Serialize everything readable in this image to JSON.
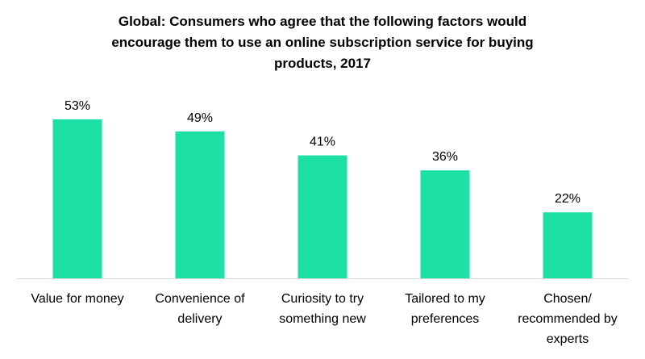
{
  "chart_data": {
    "type": "bar",
    "title": [
      "Global: Consumers who agree that the following factors would",
      "encourage them to use an online subscription service for buying",
      "products, 2017"
    ],
    "categories": [
      [
        "Value for money"
      ],
      [
        "Convenience of",
        "delivery"
      ],
      [
        "Curiosity to try",
        "something new"
      ],
      [
        "Tailored to my",
        "preferences"
      ],
      [
        "Chosen/",
        "recommended by",
        "experts"
      ]
    ],
    "values": [
      53,
      49,
      41,
      36,
      22
    ],
    "data_labels": [
      "53%",
      "49%",
      "41%",
      "36%",
      "22%"
    ],
    "ylim": [
      0,
      53
    ],
    "bar_color": "#1de0a4",
    "axis_color": "#d9d9d9",
    "gridlines": false,
    "legend": "none"
  }
}
